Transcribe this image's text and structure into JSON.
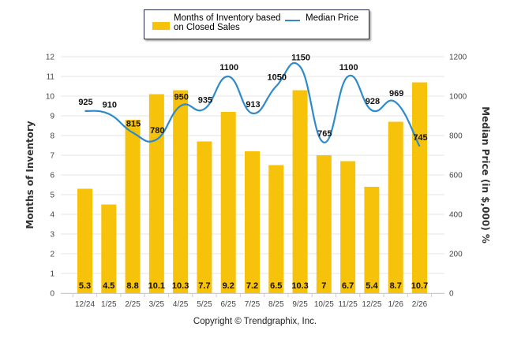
{
  "chart_data": {
    "type": "bar",
    "categories": [
      "12/24",
      "1/25",
      "2/25",
      "3/25",
      "4/25",
      "5/25",
      "6/25",
      "7/25",
      "8/25",
      "9/25",
      "10/25",
      "11/25",
      "12/25",
      "1/26",
      "2/26"
    ],
    "series": [
      {
        "name": "Months of Inventory based on Closed Sales",
        "type": "bar",
        "axis": "left",
        "color": "#f6c30a",
        "values": [
          5.3,
          4.5,
          8.8,
          10.1,
          10.3,
          7.7,
          9.2,
          7.2,
          6.5,
          10.3,
          7,
          6.7,
          5.4,
          8.7,
          10.7
        ],
        "labels": [
          "5.3",
          "4.5",
          "8.8",
          "10.1",
          "10.3",
          "7.7",
          "9.2",
          "7.2",
          "6.5",
          "10.3",
          "7",
          "6.7",
          "5.4",
          "8.7",
          "10.7"
        ]
      },
      {
        "name": "Median Price",
        "type": "line",
        "axis": "right",
        "color": "#2e8ac9",
        "values": [
          925,
          910,
          815,
          780,
          950,
          935,
          1100,
          913,
          1050,
          1150,
          765,
          1100,
          928,
          969,
          745
        ],
        "labels": [
          "925",
          "910",
          "815",
          "780",
          "950",
          "935",
          "1100",
          "913",
          "1050",
          "1150",
          "765",
          "1100",
          "928",
          "969",
          "745"
        ]
      }
    ],
    "ylabel": "Months of Inventory",
    "y2label": "Median Price (in $,000) %",
    "ylim": [
      0,
      12
    ],
    "y2lim": [
      0,
      1200
    ],
    "yticks": [
      "0",
      "1",
      "2",
      "3",
      "4",
      "5",
      "6",
      "7",
      "8",
      "9",
      "10",
      "11",
      "12"
    ],
    "y2ticks": [
      "0",
      "200",
      "400",
      "600",
      "800",
      "1000",
      "1200"
    ],
    "grid": true,
    "legend_position": "top-center"
  },
  "legend": {
    "bar_label_line1": "Months of Inventory based",
    "bar_label_line2": "on Closed Sales",
    "line_label": "Median Price"
  },
  "footer": {
    "copyright": "Copyright © Trendgraphix, Inc."
  }
}
